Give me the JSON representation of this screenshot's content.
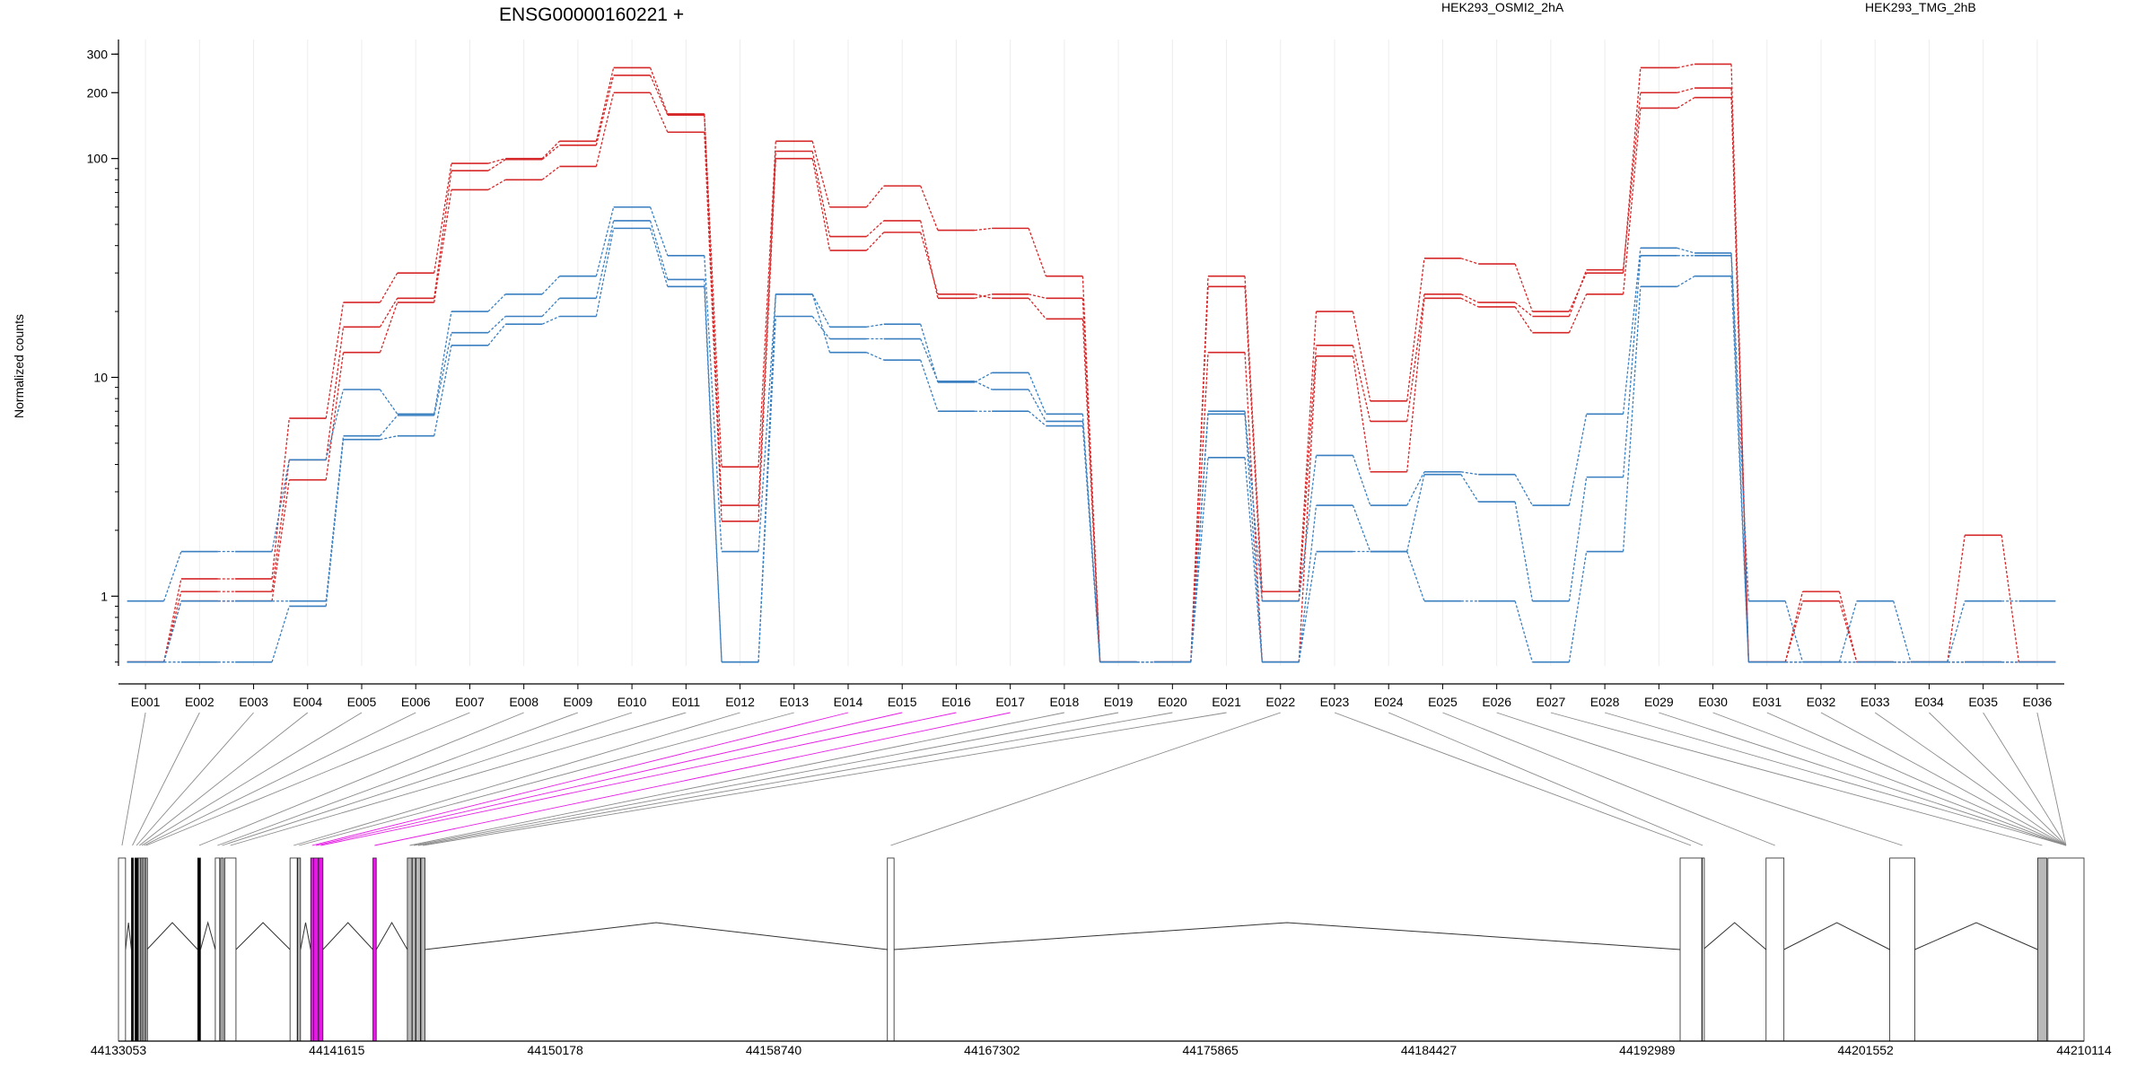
{
  "chart_data": {
    "type": "line",
    "title": "ENSG00000160221 +",
    "ylabel": "Normalized counts",
    "y_scale": "log",
    "ylim": [
      0.48,
      350
    ],
    "y_ticks": [
      {
        "value": 1,
        "label": "1"
      },
      {
        "value": 10,
        "label": "10"
      },
      {
        "value": 100,
        "label": "100"
      },
      {
        "value": 200,
        "label": "200"
      },
      {
        "value": 300,
        "label": "300"
      }
    ],
    "grid": "vertical, light gray",
    "legend_placement": "top, horizontal",
    "groups": [
      {
        "label": "HEK293_OSMI2_2hA",
        "color": "#d62728"
      },
      {
        "label": "HEK293_TMG_2hB",
        "color": "#3a7fc0"
      }
    ],
    "categories": [
      "E001",
      "E002",
      "E003",
      "E004",
      "E005",
      "E006",
      "E007",
      "E008",
      "E009",
      "E010",
      "E011",
      "E012",
      "E013",
      "E014",
      "E015",
      "E016",
      "E017",
      "E018",
      "E019",
      "E020",
      "E021",
      "E022",
      "E023",
      "E024",
      "E025",
      "E026",
      "E027",
      "E028",
      "E029",
      "E030",
      "E031",
      "E032",
      "E033",
      "E034",
      "E035",
      "E036"
    ],
    "series": [
      {
        "group": 0,
        "values": [
          0.5,
          1.2,
          1.2,
          6.5,
          22,
          30,
          95,
          100,
          120,
          260,
          160,
          3.9,
          120,
          60,
          75,
          47,
          48,
          29,
          0.5,
          0.5,
          29,
          1.05,
          20,
          7.8,
          35,
          33,
          20,
          30,
          260,
          270,
          0.5,
          1.05,
          0.5,
          0.5,
          1.9,
          0.5
        ]
      },
      {
        "group": 0,
        "values": [
          0.5,
          1.05,
          1.05,
          4.2,
          17,
          23,
          88,
          99,
          115,
          240,
          158,
          2.6,
          108,
          44,
          52,
          23,
          24,
          23,
          0.5,
          0.5,
          26,
          0.95,
          14,
          6.3,
          24,
          22,
          19,
          31,
          200,
          210,
          0.5,
          0.95,
          0.5,
          0.5,
          0.5,
          0.5
        ]
      },
      {
        "group": 0,
        "values": [
          0.5,
          0.95,
          0.95,
          3.4,
          13,
          22,
          72,
          80,
          92,
          200,
          132,
          2.2,
          100,
          38,
          46,
          24,
          23,
          18.5,
          0.5,
          0.5,
          13,
          0.5,
          12.5,
          3.7,
          23,
          21,
          16,
          24,
          170,
          190,
          0.5,
          0.5,
          0.5,
          0.5,
          0.5,
          0.5
        ]
      },
      {
        "group": 1,
        "values": [
          0.95,
          1.6,
          1.6,
          4.2,
          8.8,
          6.8,
          20,
          24,
          29,
          60,
          36,
          1.6,
          24,
          17,
          17.5,
          9.5,
          10.5,
          6.8,
          0.5,
          0.5,
          7.0,
          0.95,
          4.4,
          2.6,
          3.7,
          3.6,
          2.6,
          6.8,
          39,
          37,
          0.95,
          0.5,
          0.95,
          0.5,
          0.95,
          0.95
        ]
      },
      {
        "group": 1,
        "values": [
          0.5,
          0.95,
          0.95,
          0.95,
          5.4,
          6.7,
          16,
          19,
          23,
          52,
          28,
          0.5,
          19,
          15,
          15,
          9.6,
          8.8,
          6.3,
          0.5,
          0.5,
          6.8,
          0.5,
          2.6,
          1.6,
          3.6,
          2.7,
          0.95,
          3.5,
          36,
          36,
          0.5,
          0.5,
          0.5,
          0.5,
          0.5,
          0.5
        ]
      },
      {
        "group": 1,
        "values": [
          0.5,
          0.5,
          0.5,
          0.9,
          5.2,
          5.4,
          14,
          17.5,
          19,
          48,
          26,
          0.5,
          24,
          13,
          12,
          7.0,
          7.0,
          6.0,
          0.5,
          0.5,
          4.3,
          0.5,
          1.6,
          1.6,
          0.95,
          0.95,
          0.5,
          1.6,
          26,
          29,
          0.5,
          0.5,
          0.5,
          0.5,
          0.5,
          0.5
        ]
      }
    ],
    "highlight_color": "#e41ae4",
    "gene_model": {
      "xlim": [
        44133053,
        44210114
      ],
      "coordinate_ticks": [
        "44133053",
        "44141615",
        "44150178",
        "44158740",
        "44167302",
        "44175865",
        "44184427",
        "44192989",
        "44201552",
        "44210114"
      ],
      "exons": [
        {
          "id": "E001",
          "start": 44133053,
          "end": 44133330,
          "fill": "white"
        },
        {
          "id": "E002",
          "start": 44133560,
          "end": 44133640,
          "fill": "black"
        },
        {
          "id": "E003",
          "start": 44133700,
          "end": 44133820,
          "fill": "black"
        },
        {
          "id": "E004",
          "start": 44133830,
          "end": 44133920,
          "fill": "gray"
        },
        {
          "id": "E005",
          "start": 44133930,
          "end": 44134000,
          "fill": "gray"
        },
        {
          "id": "E006",
          "start": 44134010,
          "end": 44134100,
          "fill": "gray"
        },
        {
          "id": "E007",
          "start": 44134110,
          "end": 44134170,
          "fill": "gray"
        },
        {
          "id": "E008",
          "start": 44136160,
          "end": 44136270,
          "fill": "black"
        },
        {
          "id": "E009",
          "start": 44136850,
          "end": 44137020,
          "fill": "white"
        },
        {
          "id": "E010",
          "start": 44137060,
          "end": 44137170,
          "fill": "gray"
        },
        {
          "id": "E011",
          "start": 44137220,
          "end": 44137660,
          "fill": "white"
        },
        {
          "id": "E012",
          "start": 44139780,
          "end": 44140060,
          "fill": "white"
        },
        {
          "id": "E013",
          "start": 44140080,
          "end": 44140190,
          "fill": "gray"
        },
        {
          "id": "E014",
          "start": 44140590,
          "end": 44140700,
          "fill": "magenta"
        },
        {
          "id": "E015",
          "start": 44140710,
          "end": 44140890,
          "fill": "magenta"
        },
        {
          "id": "E016",
          "start": 44140900,
          "end": 44141070,
          "fill": "magenta"
        },
        {
          "id": "E017",
          "start": 44143030,
          "end": 44143160,
          "fill": "magenta"
        },
        {
          "id": "E018",
          "start": 44144380,
          "end": 44144560,
          "fill": "gray"
        },
        {
          "id": "E019",
          "start": 44144570,
          "end": 44144700,
          "fill": "gray"
        },
        {
          "id": "E020",
          "start": 44144720,
          "end": 44144890,
          "fill": "gray"
        },
        {
          "id": "E021",
          "start": 44144910,
          "end": 44145070,
          "fill": "gray"
        },
        {
          "id": "E022",
          "start": 44163200,
          "end": 44163460,
          "fill": "white"
        },
        {
          "id": "E023",
          "start": 44194280,
          "end": 44195130,
          "fill": "white"
        },
        {
          "id": "E024",
          "start": 44195150,
          "end": 44195180,
          "fill": "white"
        },
        {
          "id": "E025",
          "start": 44197650,
          "end": 44198350,
          "fill": "white"
        },
        {
          "id": "E026",
          "start": 44202500,
          "end": 44203480,
          "fill": "white"
        },
        {
          "id": "E027",
          "start": 44208300,
          "end": 44208650,
          "fill": "gray"
        },
        {
          "id": "E028",
          "start": 44208700,
          "end": 44210114,
          "fill": "white"
        }
      ]
    }
  }
}
